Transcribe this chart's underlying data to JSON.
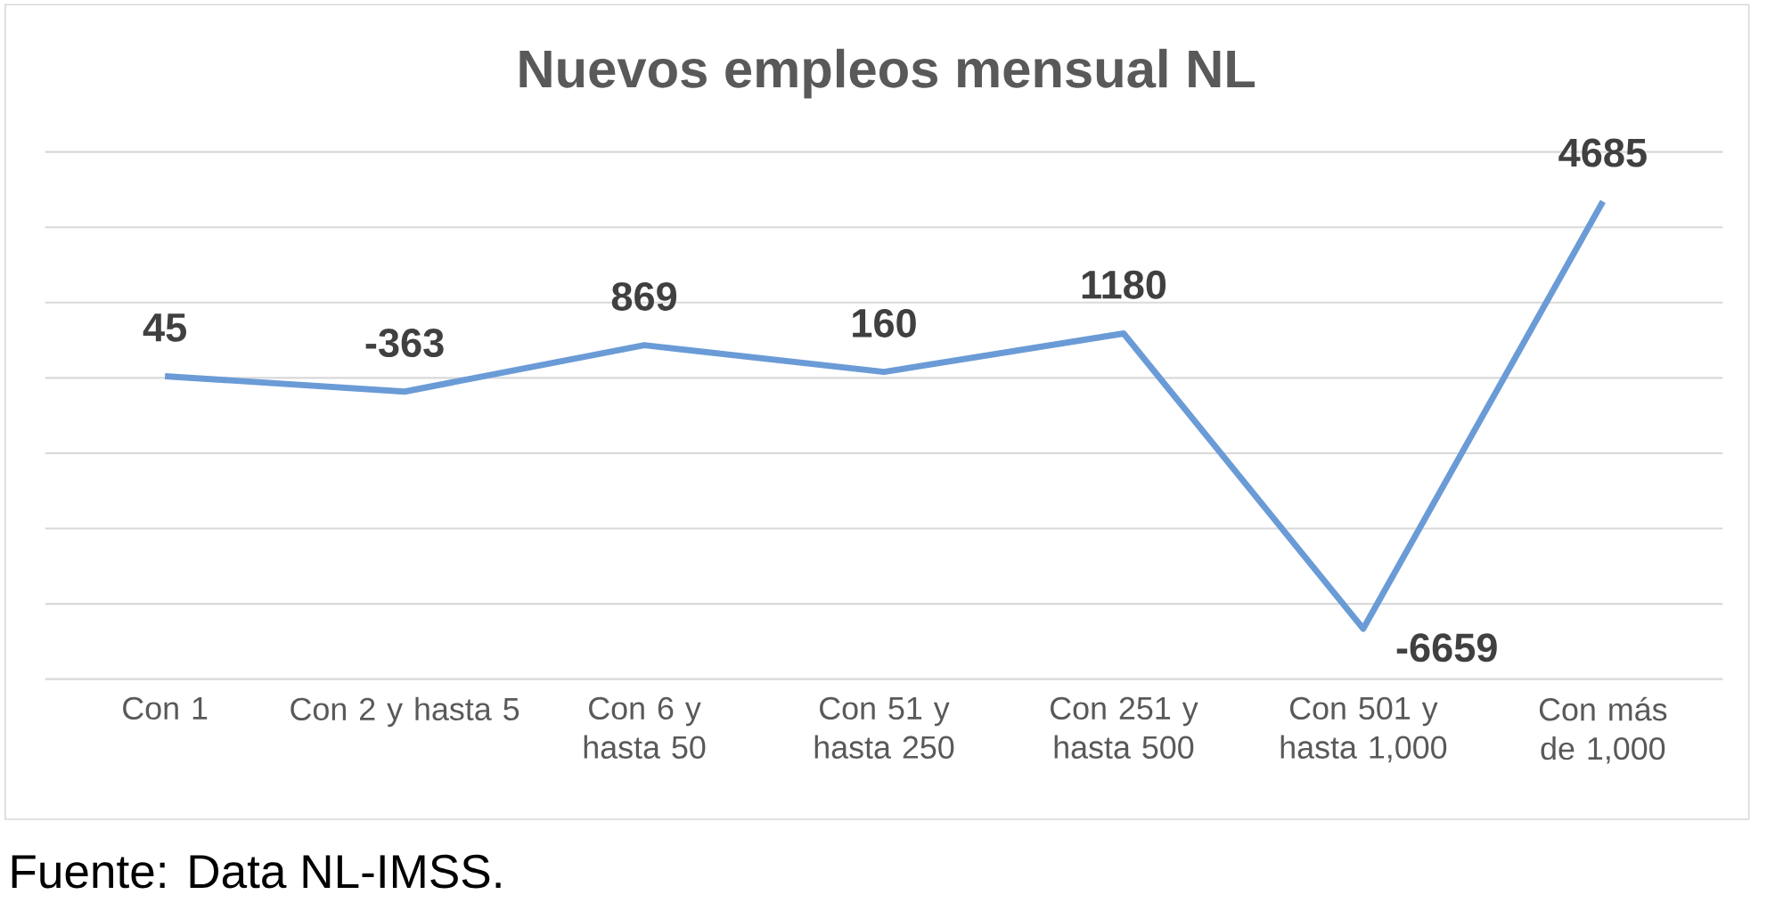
{
  "chart_data": {
    "type": "line",
    "title": "Nuevos empleos mensual NL",
    "categories": [
      "Con 1",
      "Con 2 y hasta 5",
      "Con 6 y hasta 50",
      "Con 51 y hasta 250",
      "Con 251 y hasta 500",
      "Con 501 y hasta 1,000",
      "Con más de 1,000"
    ],
    "series": [
      {
        "color": "#6a9bd6",
        "values": [
          45,
          -363,
          869,
          160,
          1180,
          -6659,
          4685
        ]
      }
    ],
    "ylim": [
      -8000,
      6000
    ],
    "yticks": [
      {
        "value": -8000,
        "label": null
      },
      {
        "value": -6000,
        "label": null
      },
      {
        "value": -4000,
        "label": null
      },
      {
        "value": -2000,
        "label": null
      },
      {
        "value": 0,
        "label": null
      },
      {
        "value": 2000,
        "label": null
      },
      {
        "value": 4000,
        "label": null
      },
      {
        "value": 6000,
        "label": null
      }
    ],
    "grid": "y",
    "tick_labels": "x",
    "marker": "none",
    "line_style": "solid",
    "data_labels": true,
    "annotations": [
      "Fuente: Data NL-IMSS."
    ]
  }
}
